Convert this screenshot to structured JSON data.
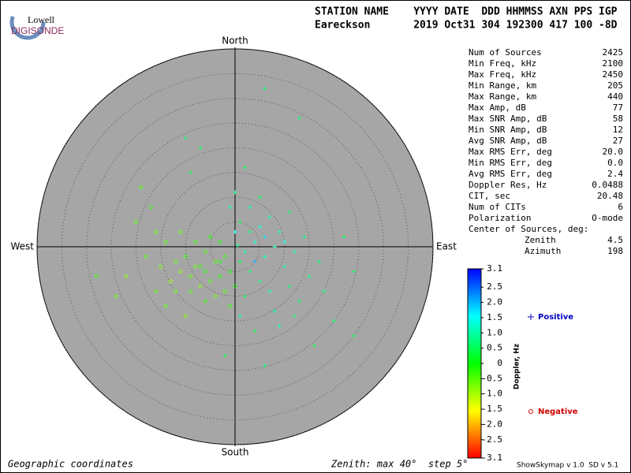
{
  "logo": {
    "top": "Lowell",
    "bottom": "DIGISONDE"
  },
  "header": {
    "columns": "STATION NAME    YYYY DATE  DDD HHMMSS AXN PPS IGP",
    "values": "Eareckson       2019 Oct31 304 192300 417 100 -8D"
  },
  "stats": [
    [
      "Num of Sources",
      "2425"
    ],
    [
      "Min Freq, kHz",
      "2100"
    ],
    [
      "Max Freq, kHz",
      "2450"
    ],
    [
      "Min Range, km",
      "205"
    ],
    [
      "Max Range, km",
      "440"
    ],
    [
      "Max Amp, dB",
      "77"
    ],
    [
      "Max SNR Amp, dB",
      "58"
    ],
    [
      "Min SNR Amp, dB",
      "12"
    ],
    [
      "Avg SNR Amp, dB",
      "27"
    ],
    [
      "Max RMS Err, deg",
      "20.0"
    ],
    [
      "Min RMS Err, deg",
      "0.0"
    ],
    [
      "Avg RMS Err, deg",
      "2.4"
    ],
    [
      "Doppler Res, Hz",
      "0.0488"
    ],
    [
      "CIT, sec",
      "20.48"
    ],
    [
      "Num of CITs",
      "6"
    ],
    [
      "Polarization",
      "O-mode"
    ]
  ],
  "center": {
    "label": "Center of Sources, deg:",
    "rows": [
      [
        "Zenith",
        "4.5"
      ],
      [
        "Azimuth",
        "198"
      ]
    ]
  },
  "chart_data": {
    "type": "skymap",
    "directions": {
      "north": "North",
      "south": "South",
      "west": "West",
      "east": "East"
    },
    "rlim": [
      0,
      40
    ],
    "rticks": [
      5,
      10,
      15,
      20,
      25,
      30,
      35,
      40
    ],
    "x": [
      0.5,
      2,
      4,
      6,
      8,
      3,
      5,
      1,
      7,
      9,
      10,
      12,
      14,
      3,
      5,
      7,
      2,
      8,
      11,
      13,
      1,
      4,
      9,
      15,
      17,
      -1,
      0,
      2,
      6,
      13,
      -7,
      -9,
      -10,
      0,
      1,
      6,
      4,
      10,
      3,
      5,
      11,
      18,
      20,
      24,
      16,
      -2,
      6,
      22,
      24,
      12,
      -2,
      -4,
      -6,
      -8,
      -3,
      -5,
      -7,
      -9,
      -10,
      -11,
      -1,
      0,
      -2,
      -4,
      -6,
      -12,
      -13,
      -14,
      -8,
      -5,
      -3,
      -11,
      -15,
      -16,
      -18,
      -20,
      -22,
      -17,
      -19,
      -24,
      -28,
      -14,
      -10,
      -7,
      -9,
      -1,
      -6,
      -3,
      -12,
      -16
    ],
    "y": [
      0.3,
      -1,
      1,
      -2,
      0,
      3,
      4,
      5,
      6,
      3,
      -4,
      -1,
      2,
      -5,
      -7,
      -9,
      -10,
      -13,
      -8,
      -11,
      -14,
      -17,
      -16,
      -6,
      -3,
      8,
      11,
      16,
      32,
      26,
      20,
      15,
      22,
      3,
      -3,
      2,
      -3,
      1,
      8,
      10,
      7,
      -9,
      -15,
      -18,
      -20,
      -22,
      -24,
      2,
      -5,
      -14,
      -2,
      -3,
      -1,
      -4,
      -6,
      -7,
      -8,
      -6,
      -2,
      -5,
      -5,
      -8,
      -9,
      -10,
      -11,
      -3,
      -7,
      1,
      1,
      2,
      1,
      3,
      -4,
      3,
      -2,
      5,
      -6,
      8,
      12,
      -10,
      -6,
      -12,
      -14,
      -4,
      -9,
      -12,
      -5,
      -3,
      -9,
      -9
    ],
    "values": [
      0.8,
      1.0,
      1.2,
      0.9,
      1.1,
      0.7,
      1.3,
      0.6,
      1.0,
      0.8,
      0.9,
      1.0,
      0.7,
      0.6,
      0.8,
      1.0,
      0.5,
      0.9,
      0.7,
      0.6,
      0.8,
      0.5,
      1.0,
      0.8,
      0.6,
      0.9,
      0.7,
      0.5,
      0.6,
      0.7,
      0.5,
      0.4,
      0.6,
      1.5,
      0.4,
      1.8,
      2.1,
      1.4,
      0.9,
      0.5,
      0.6,
      0.7,
      0.5,
      0.6,
      0.4,
      0.3,
      0.6,
      0.4,
      0.5,
      0.8,
      -0.3,
      -0.5,
      -0.4,
      -0.6,
      -0.2,
      -0.4,
      -0.7,
      -0.5,
      -0.3,
      -0.8,
      -0.1,
      -0.2,
      -0.4,
      -0.6,
      -0.3,
      -0.5,
      -0.9,
      -0.4,
      -0.3,
      -0.2,
      -0.1,
      -0.5,
      -0.7,
      -0.6,
      -0.4,
      -0.5,
      -0.8,
      -0.3,
      -0.4,
      -0.6,
      -0.3,
      -0.5,
      -0.7,
      -0.3,
      -0.4,
      -0.3,
      -0.2,
      -0.1,
      -0.6,
      -0.5
    ],
    "colorbar": {
      "label": "Doppler, Hz",
      "lim": [
        -3.1,
        3.1
      ],
      "ticks": [
        3.1,
        2.5,
        {
          "value": 2,
          "label": "2.0"
        },
        1.5,
        {
          "value": 1,
          "label": "1.0"
        },
        0.5,
        0,
        -0.5,
        {
          "value": -1,
          "label": "-1.0"
        },
        -1.5,
        {
          "value": -2,
          "label": "-2.0"
        },
        -2.5,
        -3.1
      ]
    },
    "legend": {
      "positive": "Positive",
      "negative": "Negative"
    },
    "footer": {
      "left": "Geographic coordinates",
      "middle": "Zenith: max 40°  step 5°",
      "right": "ShowSkymap v 1.0  SD v 5.1"
    }
  }
}
